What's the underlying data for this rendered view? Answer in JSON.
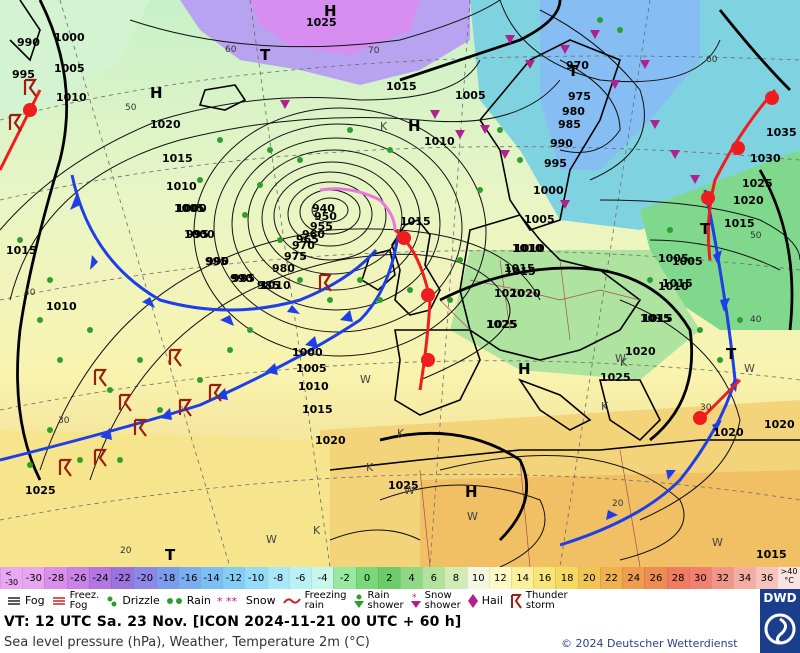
{
  "header": {
    "vt_line": "VT: 12 UTC Sa.  23 Nov. [ICON 2024-11-21  00 UTC + 60 h]",
    "description": "Sea level pressure (hPa), Weather, Temperature 2m (°C)",
    "copyright": "© 2024 Deutscher Wetterdienst",
    "logo_text": "DWD"
  },
  "scale": {
    "labels": [
      "<\n-30",
      "-30",
      "-28",
      "-26",
      "-24",
      "-22",
      "-20",
      "-18",
      "-16",
      "-14",
      "-12",
      "-10",
      "-8",
      "-6",
      "-4",
      "-2",
      "0",
      "2",
      "4",
      "6",
      "8",
      "10",
      "12",
      "14",
      "16",
      "18",
      "20",
      "22",
      "24",
      "26",
      "28",
      "30",
      "32",
      "34",
      "36",
      "38"
    ],
    "colors": [
      "#e9a9f2",
      "#e8a6f0",
      "#d98fea",
      "#c983e6",
      "#b376e1",
      "#9c72de",
      "#8d87e6",
      "#7f9bec",
      "#7aaef1",
      "#7bbef3",
      "#83cdf5",
      "#94dbf7",
      "#a8e7f8",
      "#baf1f5",
      "#c9f6ec",
      "#99e8a0",
      "#79d97a",
      "#6ccc6b",
      "#8fd884",
      "#b2e39c",
      "#d2ecb5",
      "#f4f8e0",
      "#fdfac8",
      "#fbf09c",
      "#f7e577",
      "#f4d962",
      "#f2c553",
      "#efb14e",
      "#ee9f4d",
      "#ee8d52",
      "#ee7d61",
      "#ef8072",
      "#f09689",
      "#f3ada2",
      "#f7c3bd",
      "#fad9d4"
    ],
    "unit_top": ">40",
    "unit_bottom": "°C"
  },
  "legend": [
    {
      "icon": "fog-icon",
      "label": "Fog"
    },
    {
      "icon": "freezing-fog-icon",
      "label": "Freez.\nFog"
    },
    {
      "icon": "drizzle-icon",
      "label": "Drizzle"
    },
    {
      "icon": "rain-icon",
      "label": "Rain"
    },
    {
      "icon": "snow-icon",
      "label": "Snow"
    },
    {
      "icon": "freezing-rain-icon",
      "label": "Freezing\nrain"
    },
    {
      "icon": "rain-shower-icon",
      "label": "Rain\nshower"
    },
    {
      "icon": "snow-shower-icon",
      "label": "Snow\nshower"
    },
    {
      "icon": "hail-icon",
      "label": "Hail"
    },
    {
      "icon": "thunderstorm-icon",
      "label": "Thunder\nstorm"
    }
  ],
  "map": {
    "pressure_centers": [
      {
        "symbol": "H",
        "value": "1025"
      },
      {
        "symbol": "H",
        "value": ""
      },
      {
        "symbol": "H",
        "value": "1010"
      },
      {
        "symbol": "H",
        "value": ""
      },
      {
        "symbol": "H",
        "value": ""
      },
      {
        "symbol": "T",
        "value": ""
      },
      {
        "symbol": "T",
        "value": ""
      },
      {
        "symbol": "T",
        "value": ""
      },
      {
        "symbol": "T",
        "value": ""
      },
      {
        "symbol": "T",
        "value": ""
      }
    ],
    "isobar_labels": [
      "990",
      "1000",
      "995",
      "1005",
      "1010",
      "1020",
      "1015",
      "1010",
      "1005",
      "1000",
      "995",
      "990",
      "985",
      "980",
      "975",
      "970",
      "965",
      "960",
      "955",
      "950",
      "940",
      "1015",
      "1010",
      "1005",
      "1015",
      "1020",
      "1000",
      "1005",
      "1010",
      "1015",
      "1020",
      "1025",
      "1015",
      "1020",
      "1025",
      "1015",
      "1010",
      "1005",
      "1000",
      "995",
      "990",
      "985",
      "980",
      "975",
      "970",
      "1005",
      "1010",
      "1015",
      "1020",
      "1025",
      "1030",
      "1035",
      "1020",
      "1025",
      "1010",
      "1005",
      "1015",
      "1020",
      "1025",
      "1015",
      "1015",
      "1020",
      "1015",
      "1025",
      "1015",
      "1010",
      "985",
      "990",
      "995",
      "1000",
      "1005"
    ],
    "latitude_labels": [
      "60",
      "50",
      "40",
      "30",
      "20",
      "70",
      "60",
      "50",
      "40",
      "30",
      "20"
    ],
    "weather_letters": [
      "W",
      "W",
      "W",
      "K",
      "K",
      "K",
      "W",
      "K",
      "W",
      "K",
      "W",
      "W",
      "K"
    ]
  }
}
